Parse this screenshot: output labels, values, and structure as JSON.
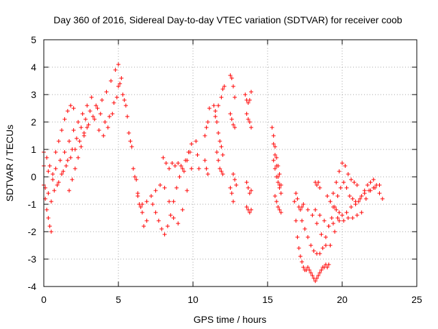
{
  "chart_data": {
    "type": "scatter",
    "title": "Day 360 of 2016, Sidereal Day-to-day VTEC variation (SDTVAR) for receiver coob",
    "xlabel": "GPS time / hours",
    "ylabel": "SDTVAR / TECUs",
    "xlim": [
      0,
      25
    ],
    "ylim": [
      -4,
      5
    ],
    "xticks": [
      0,
      5,
      10,
      15,
      20,
      25
    ],
    "yticks": [
      -4,
      -3,
      -2,
      -1,
      0,
      1,
      2,
      3,
      4,
      5
    ],
    "xtick_labels": [
      "0",
      "5",
      "10",
      "15",
      "20",
      "25"
    ],
    "ytick_labels": [
      "-4",
      "-3",
      "-2",
      "-1",
      "0",
      "1",
      "2",
      "3",
      "4",
      "5"
    ],
    "grid": true,
    "marker": "plus",
    "color": "#ff0000",
    "series": [
      {
        "name": "s1",
        "x": [
          0.0,
          0.3,
          0.6,
          0.9,
          1.2,
          1.5,
          1.8,
          2.1,
          2.4,
          2.7,
          3.0,
          3.3,
          3.6,
          3.9,
          4.2,
          4.5,
          4.8,
          5.0,
          5.2,
          5.5,
          5.8,
          6.1,
          6.4,
          6.7
        ],
        "y": [
          0.4,
          0.2,
          -0.1,
          -0.3,
          0.1,
          0.4,
          0.7,
          1.0,
          1.3,
          1.6,
          1.9,
          2.2,
          2.5,
          2.8,
          3.1,
          3.5,
          3.9,
          4.1,
          3.6,
          2.6,
          1.3,
          0.0,
          -1.0,
          -1.8
        ]
      },
      {
        "name": "s2",
        "x": [
          0.1,
          0.3,
          0.5,
          0.7,
          1.0,
          1.3,
          1.6,
          1.9,
          2.2,
          2.5,
          2.8,
          3.1,
          3.4,
          3.7,
          4.0,
          4.3,
          4.6,
          4.9,
          5.1,
          5.4,
          5.7,
          6.0,
          6.3,
          6.6
        ],
        "y": [
          -0.4,
          -0.6,
          -0.9,
          -0.5,
          -0.2,
          0.2,
          0.6,
          1.0,
          1.4,
          1.8,
          2.1,
          2.4,
          2.1,
          1.7,
          1.5,
          1.8,
          2.3,
          2.9,
          3.4,
          2.8,
          1.6,
          0.3,
          -0.7,
          -1.3
        ]
      },
      {
        "name": "s3",
        "x": [
          0.0,
          0.2,
          0.4,
          0.6,
          0.8,
          1.1,
          1.4,
          1.7,
          2.0,
          2.3,
          2.6,
          2.9,
          3.2,
          3.5,
          3.8,
          4.1,
          4.4,
          4.7,
          5.0,
          5.3,
          5.6,
          5.9,
          6.2,
          6.5,
          6.9
        ],
        "y": [
          0.9,
          0.7,
          0.4,
          0.1,
          0.3,
          0.6,
          0.9,
          1.3,
          1.7,
          2.0,
          2.3,
          2.6,
          2.9,
          2.6,
          2.3,
          2.0,
          2.2,
          2.7,
          3.3,
          3.0,
          2.2,
          1.1,
          -0.1,
          -1.1,
          -1.6
        ]
      },
      {
        "name": "s4",
        "x": [
          0.0,
          0.1,
          0.2,
          0.3,
          0.4,
          0.5
        ],
        "y": [
          -0.3,
          -0.8,
          -1.2,
          -1.5,
          -1.8,
          -2.0
        ]
      },
      {
        "name": "s5",
        "x": [
          0.8,
          1.0,
          1.2,
          1.4,
          1.6,
          1.8,
          2.0
        ],
        "y": [
          0.9,
          1.3,
          1.7,
          2.1,
          2.4,
          2.6,
          2.5
        ]
      },
      {
        "name": "s6",
        "x": [
          1.7,
          1.9,
          2.1,
          2.3,
          2.5,
          2.7,
          2.9
        ],
        "y": [
          -0.5,
          -0.1,
          0.3,
          0.7,
          1.1,
          1.5,
          1.8
        ]
      },
      {
        "name": "s7",
        "x": [
          6.3,
          6.6,
          6.9,
          7.2,
          7.5,
          7.8,
          8.1,
          8.4,
          8.7,
          9.0,
          9.3,
          9.6,
          9.9
        ],
        "y": [
          -0.6,
          -1.0,
          -0.9,
          -0.7,
          -0.5,
          -0.3,
          -0.4,
          -0.9,
          -1.5,
          -1.7,
          -1.2,
          -0.5,
          0.3
        ]
      },
      {
        "name": "s8",
        "x": [
          7.3,
          7.5,
          7.7,
          7.9,
          8.1,
          8.3,
          8.5,
          8.7,
          8.9,
          9.1,
          9.3,
          9.5,
          9.7,
          9.9
        ],
        "y": [
          -1.0,
          -1.3,
          -1.6,
          -1.9,
          -2.1,
          -1.8,
          -1.4,
          -0.9,
          -0.4,
          0.0,
          0.3,
          0.6,
          0.9,
          1.2
        ]
      },
      {
        "name": "s9",
        "x": [
          8.0,
          8.2,
          8.4,
          8.6,
          8.8,
          9.0,
          9.2,
          9.4,
          9.6,
          9.8
        ],
        "y": [
          0.7,
          0.5,
          0.3,
          0.5,
          0.4,
          0.5,
          0.4,
          0.2,
          0.6,
          0.9
        ]
      },
      {
        "name": "s10",
        "x": [
          10.2,
          10.3,
          10.4
        ],
        "y": [
          1.3,
          0.8,
          0.3
        ]
      },
      {
        "name": "s11",
        "x": [
          10.8,
          10.9,
          11.0,
          11.1
        ],
        "y": [
          1.5,
          1.8,
          2.0,
          2.5
        ]
      },
      {
        "name": "s12",
        "x": [
          10.8,
          10.9,
          11.0
        ],
        "y": [
          0.6,
          0.3,
          0.1
        ]
      },
      {
        "name": "s13",
        "x": [
          11.4,
          11.5,
          11.6,
          11.7,
          11.8,
          11.9,
          12.0
        ],
        "y": [
          2.6,
          2.4,
          2.0,
          1.6,
          1.3,
          1.1,
          0.8
        ]
      },
      {
        "name": "s14",
        "x": [
          11.5,
          11.7,
          11.9,
          12.0,
          12.1
        ],
        "y": [
          2.2,
          2.6,
          2.9,
          3.2,
          3.3
        ]
      },
      {
        "name": "s15",
        "x": [
          11.6,
          11.7,
          11.8,
          11.9,
          12.0
        ],
        "y": [
          0.9,
          0.6,
          0.3,
          0.2,
          0.1
        ]
      },
      {
        "name": "s16",
        "x": [
          12.5,
          12.6,
          12.7,
          12.8
        ],
        "y": [
          3.7,
          3.6,
          3.3,
          2.9
        ]
      },
      {
        "name": "s17",
        "x": [
          12.5,
          12.6,
          12.7,
          12.8
        ],
        "y": [
          2.3,
          2.1,
          1.9,
          1.8
        ]
      },
      {
        "name": "s18",
        "x": [
          12.5,
          12.6,
          12.7
        ],
        "y": [
          -0.4,
          -0.6,
          -0.9
        ]
      },
      {
        "name": "s19",
        "x": [
          12.7,
          12.8,
          12.9
        ],
        "y": [
          0.1,
          -0.1,
          -0.3
        ]
      },
      {
        "name": "s20",
        "x": [
          13.5,
          13.6,
          13.7,
          13.8,
          13.9
        ],
        "y": [
          3.0,
          2.8,
          2.7,
          2.8,
          3.1
        ]
      },
      {
        "name": "s21",
        "x": [
          13.6,
          13.7,
          13.8,
          13.9
        ],
        "y": [
          2.3,
          2.1,
          2.0,
          1.8
        ]
      },
      {
        "name": "s22",
        "x": [
          13.6,
          13.7,
          13.8,
          13.9
        ],
        "y": [
          -0.2,
          -0.4,
          -0.6,
          -0.5
        ]
      },
      {
        "name": "s23",
        "x": [
          13.6,
          13.7,
          13.8,
          13.9
        ],
        "y": [
          -1.1,
          -1.2,
          -1.3,
          -1.2
        ]
      },
      {
        "name": "s24",
        "x": [
          15.3,
          15.4,
          15.5,
          15.6,
          15.7,
          15.8,
          15.9
        ],
        "y": [
          1.8,
          1.5,
          1.1,
          0.7,
          0.4,
          0.1,
          -0.3
        ]
      },
      {
        "name": "s25",
        "x": [
          15.4,
          15.5,
          15.6,
          15.7,
          15.8,
          15.9
        ],
        "y": [
          1.2,
          0.8,
          0.4,
          0.0,
          -0.3,
          -0.6
        ]
      },
      {
        "name": "s26",
        "x": [
          15.5,
          15.6,
          15.7,
          15.8,
          15.9
        ],
        "y": [
          -0.7,
          -0.9,
          -1.1,
          -1.2,
          -1.3
        ]
      },
      {
        "name": "s27",
        "x": [
          15.4,
          15.5,
          15.6,
          15.7,
          15.8
        ],
        "y": [
          0.6,
          0.3,
          0.0,
          -0.2,
          -0.4
        ]
      },
      {
        "name": "s28",
        "x": [
          16.8,
          16.9,
          17.0,
          17.1,
          17.2,
          17.3,
          17.4,
          17.5,
          17.6,
          17.7,
          17.8,
          17.9,
          18.0,
          18.1,
          18.2,
          18.3,
          18.4,
          18.5,
          18.6,
          18.7,
          18.8,
          18.9,
          19.0,
          19.1
        ],
        "y": [
          -0.9,
          -1.6,
          -2.2,
          -2.6,
          -2.9,
          -3.1,
          -3.3,
          -3.4,
          -3.4,
          -3.3,
          -3.4,
          -3.5,
          -3.6,
          -3.7,
          -3.8,
          -3.7,
          -3.6,
          -3.5,
          -3.4,
          -3.3,
          -3.3,
          -3.2,
          -3.3,
          -3.2
        ]
      },
      {
        "name": "s29",
        "x": [
          16.9,
          17.0,
          17.1,
          17.2,
          17.3
        ],
        "y": [
          -0.6,
          -0.8,
          -1.1,
          -1.2,
          -1.1
        ]
      },
      {
        "name": "s30",
        "x": [
          17.3,
          17.5,
          17.7,
          17.9,
          18.1,
          18.3,
          18.5,
          18.7,
          18.9,
          19.1,
          19.3,
          19.5,
          19.7,
          19.9,
          20.1,
          20.3,
          20.5,
          20.7,
          20.9,
          21.1,
          21.3,
          21.5,
          21.7,
          21.9,
          22.1,
          22.3,
          22.5,
          22.7
        ],
        "y": [
          -1.6,
          -1.9,
          -2.2,
          -2.5,
          -2.7,
          -2.8,
          -2.8,
          -2.6,
          -2.2,
          -1.8,
          -1.5,
          -1.1,
          -0.7,
          -0.4,
          -0.2,
          -0.4,
          -0.7,
          -0.8,
          -1.0,
          -0.9,
          -0.7,
          -0.5,
          -0.3,
          -0.2,
          -0.1,
          -0.3,
          -0.6,
          -0.8
        ]
      },
      {
        "name": "s31",
        "x": [
          17.4,
          17.7,
          18.0,
          18.3,
          18.6,
          18.9,
          19.2,
          19.5,
          19.8,
          20.1,
          20.4,
          20.7,
          21.0,
          21.3,
          21.6,
          21.9,
          22.2,
          22.5
        ],
        "y": [
          -1.0,
          -1.2,
          -1.4,
          -1.7,
          -2.1,
          -2.5,
          -2.5,
          -2.0,
          -1.6,
          -1.6,
          -1.5,
          -1.5,
          -1.4,
          -1.3,
          -0.8,
          -0.5,
          -0.4,
          -0.3
        ]
      },
      {
        "name": "s32",
        "x": [
          18.2,
          18.5,
          18.8,
          19.1,
          19.4,
          19.7,
          20.0,
          20.3,
          20.6,
          20.9,
          21.2,
          21.5,
          21.8,
          22.1
        ],
        "y": [
          -1.2,
          -1.4,
          -1.6,
          -1.8,
          -1.7,
          -1.5,
          -1.4,
          -1.3,
          -1.1,
          -0.9,
          -0.8,
          -0.6,
          -0.5,
          -0.4
        ]
      },
      {
        "name": "s33",
        "x": [
          19.2,
          19.4,
          19.6,
          19.8,
          20.0,
          20.2,
          20.4,
          20.6,
          20.8,
          21.0
        ],
        "y": [
          -0.9,
          -0.6,
          -0.2,
          0.2,
          0.5,
          0.4,
          0.1,
          -0.1,
          -0.2,
          -0.3
        ]
      },
      {
        "name": "s34",
        "x": [
          18.2,
          18.3,
          18.4,
          18.5
        ],
        "y": [
          -0.2,
          -0.3,
          -0.2,
          -0.4
        ]
      },
      {
        "name": "s35",
        "x": [
          19.0,
          19.2,
          19.4,
          19.6,
          19.8,
          20.0
        ],
        "y": [
          -0.7,
          -0.9,
          -1.1,
          -1.2,
          -1.3,
          -1.4
        ]
      }
    ]
  }
}
